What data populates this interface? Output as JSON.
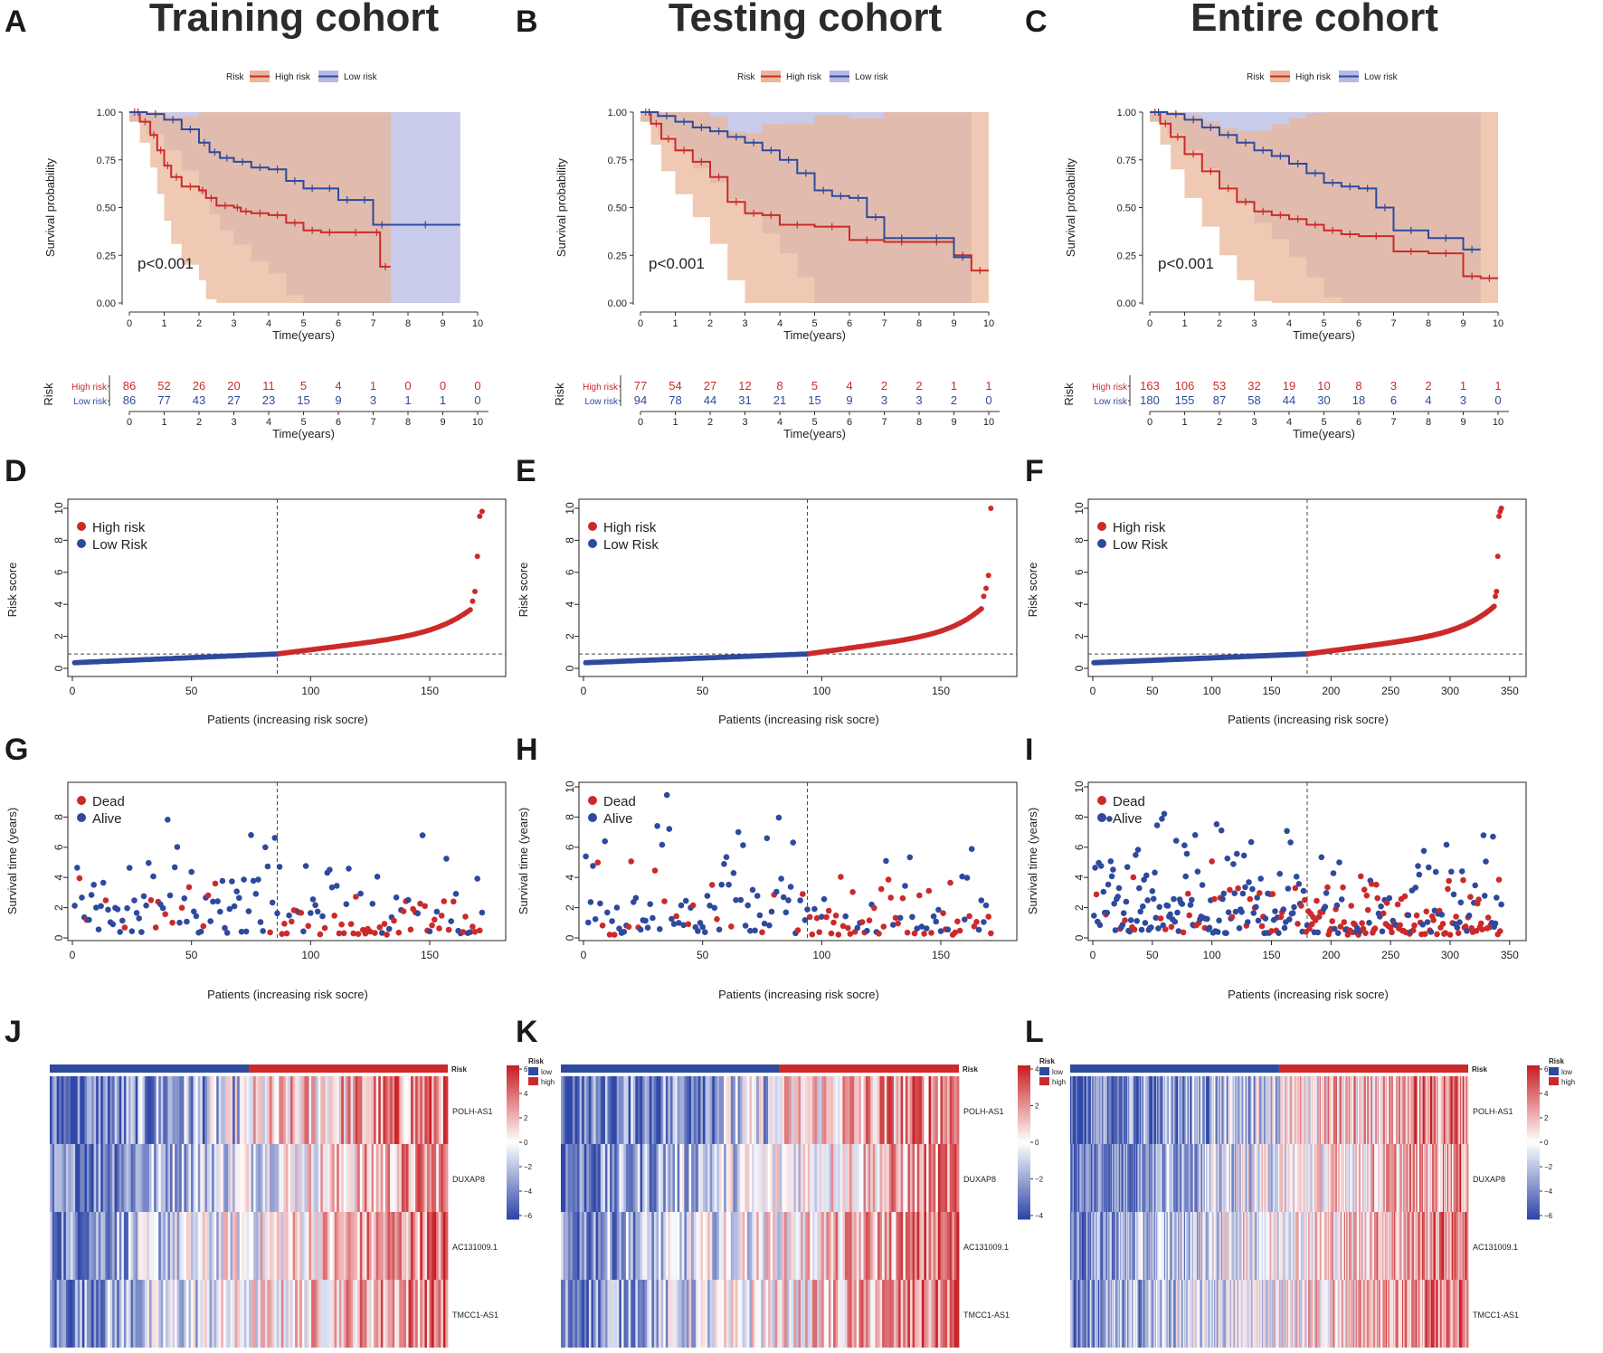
{
  "colors": {
    "high": "#cc2a2a",
    "low": "#2e4a9e",
    "highFill": "#e9b79a",
    "lowFill": "#b5b9e3"
  },
  "cohorts": [
    {
      "letterKM": "A",
      "letterRisk": "D",
      "letterSurv": "G",
      "letterHeat": "J",
      "title": "Training cohort",
      "n": 172,
      "nLow": 86,
      "riskMax": 10,
      "riskYmax": 10
    },
    {
      "letterKM": "B",
      "letterRisk": "E",
      "letterSurv": "H",
      "letterHeat": "K",
      "title": "Testing cohort",
      "n": 171,
      "nLow": 94,
      "riskMax": 10,
      "riskYmax": 10
    },
    {
      "letterKM": "C",
      "letterRisk": "F",
      "letterSurv": "I",
      "letterHeat": "L",
      "title": "Entire cohort",
      "n": 343,
      "nLow": 180,
      "riskMax": 10,
      "riskYmax": 10
    }
  ],
  "chart_data": [
    {
      "type": "line",
      "panel": "A",
      "title": "Training cohort",
      "xlabel": "Time(years)",
      "ylabel": "Survival probability",
      "xlim": [
        0,
        10
      ],
      "ylim": [
        0,
        1
      ],
      "xticks": [
        "0",
        "1",
        "2",
        "3",
        "4",
        "5",
        "6",
        "7",
        "8",
        "9",
        "10"
      ],
      "yticks": [
        "0.00",
        "0.25",
        "0.50",
        "0.75",
        "1.00"
      ],
      "legend": {
        "title": "Risk",
        "entries": [
          "High risk",
          "Low risk"
        ]
      },
      "annotation": "p<0.001",
      "series": [
        {
          "name": "High risk",
          "x": [
            0,
            0.3,
            0.6,
            0.8,
            1.0,
            1.2,
            1.5,
            2.0,
            2.2,
            2.5,
            3.0,
            3.2,
            3.5,
            4.0,
            4.5,
            5.0,
            5.5,
            6.0,
            7.0,
            7.2,
            7.5
          ],
          "y": [
            1.0,
            0.95,
            0.88,
            0.8,
            0.72,
            0.66,
            0.61,
            0.59,
            0.55,
            0.51,
            0.5,
            0.48,
            0.47,
            0.46,
            0.42,
            0.38,
            0.37,
            0.37,
            0.37,
            0.19,
            0.19
          ]
        },
        {
          "name": "Low risk",
          "x": [
            0,
            0.5,
            1.0,
            1.5,
            2.0,
            2.3,
            2.6,
            3.0,
            3.5,
            4.0,
            4.5,
            5.0,
            5.5,
            6.0,
            6.5,
            7.0,
            7.5,
            9.5
          ],
          "y": [
            1.0,
            0.99,
            0.96,
            0.91,
            0.84,
            0.79,
            0.76,
            0.74,
            0.71,
            0.7,
            0.64,
            0.6,
            0.6,
            0.54,
            0.54,
            0.41,
            0.41,
            0.41
          ]
        }
      ],
      "at_risk": {
        "title": "Risk",
        "xlabel": "Time(years)",
        "labels": [
          "High risk",
          "Low risk"
        ],
        "high": [
          "86",
          "52",
          "26",
          "20",
          "11",
          "5",
          "4",
          "1",
          "0",
          "0",
          "0"
        ],
        "low": [
          "86",
          "77",
          "43",
          "27",
          "23",
          "15",
          "9",
          "3",
          "1",
          "1",
          "0"
        ]
      }
    },
    {
      "type": "line",
      "panel": "B",
      "title": "Testing cohort",
      "xlabel": "Time(years)",
      "ylabel": "Survival probability",
      "xlim": [
        0,
        10
      ],
      "ylim": [
        0,
        1
      ],
      "xticks": [
        "0",
        "1",
        "2",
        "3",
        "4",
        "5",
        "6",
        "7",
        "8",
        "9",
        "10"
      ],
      "yticks": [
        "0.00",
        "0.25",
        "0.50",
        "0.75",
        "1.00"
      ],
      "legend": {
        "title": "Risk",
        "entries": [
          "High risk",
          "Low risk"
        ]
      },
      "annotation": "p<0.001",
      "series": [
        {
          "name": "High risk",
          "x": [
            0,
            0.3,
            0.6,
            1.0,
            1.5,
            2.0,
            2.5,
            3.0,
            3.5,
            4.0,
            5.0,
            6.0,
            7.0,
            8.0,
            9.0,
            9.5,
            10.0
          ],
          "y": [
            1.0,
            0.94,
            0.86,
            0.8,
            0.74,
            0.66,
            0.53,
            0.47,
            0.46,
            0.41,
            0.4,
            0.33,
            0.32,
            0.32,
            0.25,
            0.17,
            0.17
          ]
        },
        {
          "name": "Low risk",
          "x": [
            0,
            0.5,
            1.0,
            1.5,
            2.0,
            2.5,
            3.0,
            3.5,
            4.0,
            4.5,
            5.0,
            5.5,
            6.0,
            6.5,
            7.0,
            8.0,
            9.0,
            9.5
          ],
          "y": [
            1.0,
            0.98,
            0.95,
            0.92,
            0.9,
            0.87,
            0.84,
            0.8,
            0.75,
            0.68,
            0.59,
            0.56,
            0.55,
            0.45,
            0.34,
            0.34,
            0.24,
            0.24
          ]
        }
      ],
      "at_risk": {
        "title": "Risk",
        "xlabel": "Time(years)",
        "labels": [
          "High risk",
          "Low risk"
        ],
        "high": [
          "77",
          "54",
          "27",
          "12",
          "8",
          "5",
          "4",
          "2",
          "2",
          "1",
          "1"
        ],
        "low": [
          "94",
          "78",
          "44",
          "31",
          "21",
          "15",
          "9",
          "3",
          "3",
          "2",
          "0"
        ]
      }
    },
    {
      "type": "line",
      "panel": "C",
      "title": "Entire cohort",
      "xlabel": "Time(years)",
      "ylabel": "Survival probability",
      "xlim": [
        0,
        10
      ],
      "ylim": [
        0,
        1
      ],
      "xticks": [
        "0",
        "1",
        "2",
        "3",
        "4",
        "5",
        "6",
        "7",
        "8",
        "9",
        "10"
      ],
      "yticks": [
        "0.00",
        "0.25",
        "0.50",
        "0.75",
        "1.00"
      ],
      "legend": {
        "title": "Risk",
        "entries": [
          "High risk",
          "Low risk"
        ]
      },
      "annotation": "p<0.001",
      "series": [
        {
          "name": "High risk",
          "x": [
            0,
            0.3,
            0.6,
            1.0,
            1.5,
            2.0,
            2.5,
            3.0,
            3.5,
            4.0,
            4.5,
            5.0,
            5.5,
            6.0,
            7.0,
            8.0,
            9.0,
            9.5,
            10.0
          ],
          "y": [
            1.0,
            0.94,
            0.87,
            0.78,
            0.69,
            0.6,
            0.53,
            0.48,
            0.46,
            0.44,
            0.41,
            0.38,
            0.36,
            0.35,
            0.27,
            0.26,
            0.14,
            0.13,
            0.13
          ]
        },
        {
          "name": "Low risk",
          "x": [
            0,
            0.5,
            1.0,
            1.5,
            2.0,
            2.5,
            3.0,
            3.5,
            4.0,
            4.5,
            5.0,
            5.5,
            6.0,
            6.5,
            7.0,
            8.0,
            9.0,
            9.5
          ],
          "y": [
            1.0,
            0.99,
            0.96,
            0.92,
            0.88,
            0.84,
            0.8,
            0.77,
            0.73,
            0.68,
            0.63,
            0.61,
            0.6,
            0.5,
            0.38,
            0.34,
            0.28,
            0.28
          ]
        }
      ],
      "at_risk": {
        "title": "Risk",
        "xlabel": "Time(years)",
        "labels": [
          "High risk",
          "Low risk"
        ],
        "high": [
          "163",
          "106",
          "53",
          "32",
          "19",
          "10",
          "8",
          "3",
          "2",
          "1",
          "1"
        ],
        "low": [
          "180",
          "155",
          "87",
          "58",
          "44",
          "30",
          "18",
          "6",
          "4",
          "3",
          "0"
        ]
      }
    },
    {
      "type": "scatter",
      "panel": "D",
      "xlabel": "Patients (increasing risk socre)",
      "ylabel": "Risk score",
      "n": 172,
      "cutoff_index": 86,
      "cutoff_value": 0.9,
      "ylim": [
        0,
        10
      ],
      "xticks": [
        "0",
        "50",
        "100",
        "150"
      ],
      "yticks": [
        "0",
        "2",
        "4",
        "6",
        "8",
        "10"
      ],
      "legend": [
        "High risk",
        "Low Risk"
      ],
      "max_values": [
        4.2,
        4.8,
        7.0,
        9.5,
        9.8
      ]
    },
    {
      "type": "scatter",
      "panel": "E",
      "xlabel": "Patients (increasing risk socre)",
      "ylabel": "Risk score",
      "n": 171,
      "cutoff_index": 94,
      "cutoff_value": 0.9,
      "ylim": [
        0,
        10
      ],
      "xticks": [
        "0",
        "50",
        "100",
        "150"
      ],
      "yticks": [
        "0",
        "2",
        "4",
        "6",
        "8",
        "10"
      ],
      "legend": [
        "High risk",
        "Low Risk"
      ],
      "max_values": [
        4.5,
        5.0,
        5.8,
        10.0
      ]
    },
    {
      "type": "scatter",
      "panel": "F",
      "xlabel": "Patients (increasing risk socre)",
      "ylabel": "Risk score",
      "n": 343,
      "cutoff_index": 180,
      "cutoff_value": 0.9,
      "ylim": [
        0,
        10
      ],
      "xticks": [
        "0",
        "50",
        "100",
        "150",
        "200",
        "250",
        "300",
        "350"
      ],
      "yticks": [
        "0",
        "2",
        "4",
        "6",
        "8",
        "10"
      ],
      "legend": [
        "High risk",
        "Low Risk"
      ],
      "max_values": [
        4.5,
        4.8,
        7.0,
        9.5,
        9.8,
        10.0
      ]
    },
    {
      "type": "scatter",
      "panel": "G",
      "xlabel": "Patients (increasing risk socre)",
      "ylabel": "Survival time (years)",
      "n": 172,
      "cutoff_index": 86,
      "ylim": [
        0,
        10
      ],
      "xticks": [
        "0",
        "50",
        "100",
        "150"
      ],
      "yticks": [
        "0",
        "2",
        "4",
        "6",
        "8"
      ],
      "legend": [
        "Dead",
        "Alive"
      ]
    },
    {
      "type": "scatter",
      "panel": "H",
      "xlabel": "Patients (increasing risk socre)",
      "ylabel": "Survival time (years)",
      "n": 171,
      "cutoff_index": 94,
      "ylim": [
        0,
        10
      ],
      "xticks": [
        "0",
        "50",
        "100",
        "150"
      ],
      "yticks": [
        "0",
        "2",
        "4",
        "6",
        "8",
        "10"
      ],
      "legend": [
        "Dead",
        "Alive"
      ]
    },
    {
      "type": "scatter",
      "panel": "I",
      "xlabel": "Patients (increasing risk socre)",
      "ylabel": "Survival time (years)",
      "n": 343,
      "cutoff_index": 180,
      "ylim": [
        0,
        10
      ],
      "xticks": [
        "0",
        "50",
        "100",
        "150",
        "200",
        "250",
        "300",
        "350"
      ],
      "yticks": [
        "0",
        "2",
        "4",
        "6",
        "8",
        "10"
      ],
      "legend": [
        "Dead",
        "Alive"
      ]
    },
    {
      "type": "heatmap",
      "panel": "J",
      "rows": [
        "POLH-AS1",
        "DUXAP8",
        "AC131009.1",
        "TMCC1-AS1"
      ],
      "annotation_label": "Risk",
      "annotation_levels": [
        "low",
        "high"
      ],
      "scale_range": [
        -6,
        6
      ],
      "scale_ticks": [
        "6",
        "4",
        "2",
        "0",
        "−2",
        "−4",
        "−6"
      ],
      "n": 172,
      "nLow": 86
    },
    {
      "type": "heatmap",
      "panel": "K",
      "rows": [
        "POLH-AS1",
        "DUXAP8",
        "AC131009.1",
        "TMCC1-AS1"
      ],
      "annotation_label": "Risk",
      "annotation_levels": [
        "low",
        "high"
      ],
      "scale_range": [
        -5,
        5
      ],
      "scale_ticks": [
        "4",
        "2",
        "0",
        "−2",
        "−4"
      ],
      "n": 171,
      "nLow": 94
    },
    {
      "type": "heatmap",
      "panel": "L",
      "rows": [
        "POLH-AS1",
        "DUXAP8",
        "AC131009.1",
        "TMCC1-AS1"
      ],
      "annotation_label": "Risk",
      "annotation_levels": [
        "low",
        "high"
      ],
      "scale_range": [
        -6,
        6
      ],
      "scale_ticks": [
        "6",
        "4",
        "2",
        "0",
        "−2",
        "−4",
        "−6"
      ],
      "n": 343,
      "nLow": 180
    }
  ]
}
